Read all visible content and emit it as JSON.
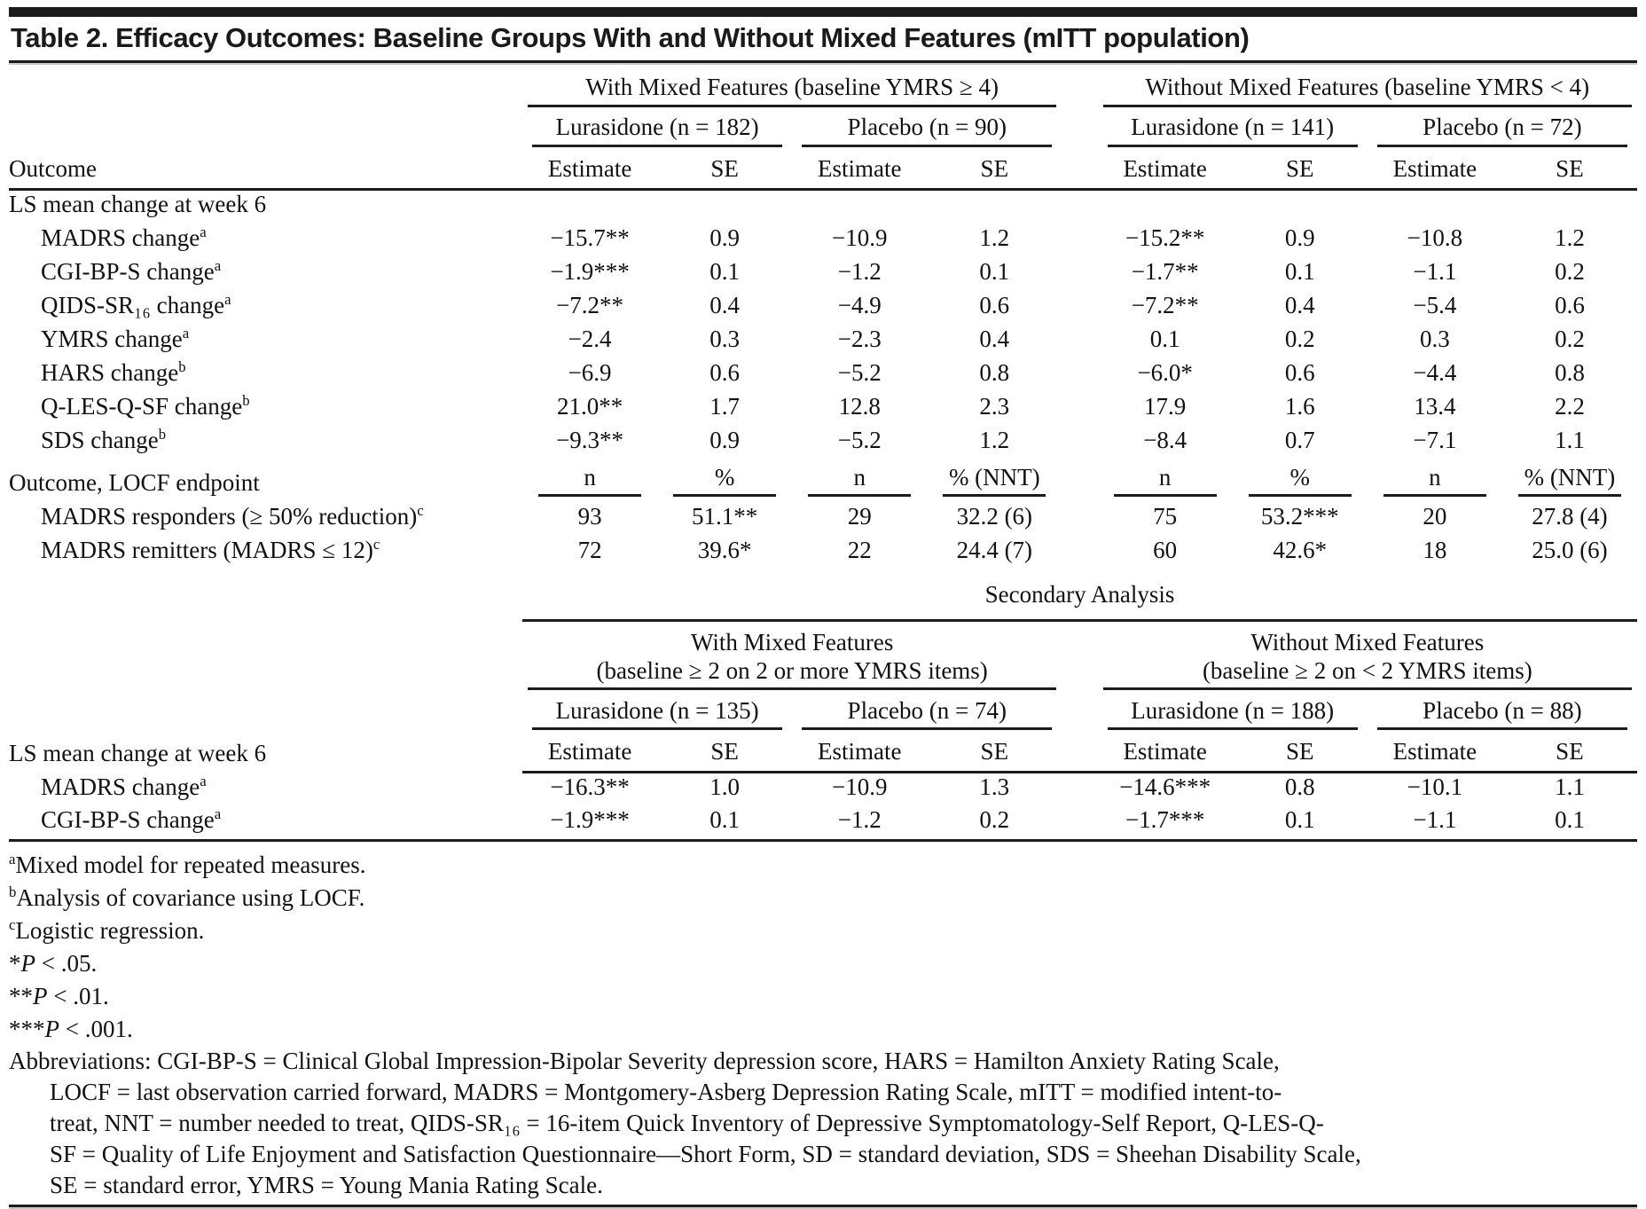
{
  "title": "Table 2. Efficacy Outcomes: Baseline Groups With and Without Mixed Features (mITT population)",
  "labels": {
    "outcome": "Outcome",
    "estimate": "Estimate",
    "se": "SE",
    "ls_mean": "LS mean change at week 6",
    "locf_endpoint": "Outcome, LOCF endpoint",
    "secondary_analysis": "Secondary Analysis"
  },
  "primary": {
    "group_headers": [
      "With Mixed Features (baseline YMRS ≥ 4)",
      "Without Mixed Features (baseline YMRS < 4)"
    ],
    "arm_headers": [
      "Lurasidone (n = 182)",
      "Placebo (n = 90)",
      "Lurasidone (n = 141)",
      "Placebo (n = 72)"
    ],
    "rows": [
      {
        "label": "MADRS change",
        "sup": "a",
        "values": [
          "−15.7**",
          "0.9",
          "−10.9",
          "1.2",
          "−15.2**",
          "0.9",
          "−10.8",
          "1.2"
        ]
      },
      {
        "label": "CGI-BP-S change",
        "sup": "a",
        "values": [
          "−1.9***",
          "0.1",
          "−1.2",
          "0.1",
          "−1.7**",
          "0.1",
          "−1.1",
          "0.2"
        ]
      },
      {
        "label": "QIDS-SR₁₆ change",
        "sup": "a",
        "values": [
          "−7.2**",
          "0.4",
          "−4.9",
          "0.6",
          "−7.2**",
          "0.4",
          "−5.4",
          "0.6"
        ]
      },
      {
        "label": "YMRS change",
        "sup": "a",
        "values": [
          "−2.4",
          "0.3",
          "−2.3",
          "0.4",
          "0.1",
          "0.2",
          "0.3",
          "0.2"
        ]
      },
      {
        "label": "HARS change",
        "sup": "b",
        "values": [
          "−6.9",
          "0.6",
          "−5.2",
          "0.8",
          "−6.0*",
          "0.6",
          "−4.4",
          "0.8"
        ]
      },
      {
        "label": "Q-LES-Q-SF change",
        "sup": "b",
        "values": [
          "21.0**",
          "1.7",
          "12.8",
          "2.3",
          "17.9",
          "1.6",
          "13.4",
          "2.2"
        ]
      },
      {
        "label": "SDS change",
        "sup": "b",
        "values": [
          "−9.3**",
          "0.9",
          "−5.2",
          "1.2",
          "−8.4",
          "0.7",
          "−7.1",
          "1.1"
        ]
      }
    ],
    "locf_headers": [
      "n",
      "%",
      "n",
      "% (NNT)"
    ],
    "locf_rows": [
      {
        "label": "MADRS responders (≥ 50% reduction)",
        "sup": "c",
        "values": [
          "93",
          "51.1**",
          "29",
          "32.2 (6)",
          "75",
          "53.2***",
          "20",
          "27.8 (4)"
        ]
      },
      {
        "label": "MADRS remitters (MADRS ≤ 12)",
        "sup": "c",
        "values": [
          "72",
          "39.6*",
          "22",
          "24.4 (7)",
          "60",
          "42.6*",
          "18",
          "25.0 (6)"
        ]
      }
    ]
  },
  "secondary": {
    "group_headers": [
      {
        "line1": "With Mixed Features",
        "line2": "(baseline ≥ 2 on 2 or more YMRS items)"
      },
      {
        "line1": "Without Mixed Features",
        "line2": "(baseline ≥ 2 on < 2 YMRS items)"
      }
    ],
    "arm_headers": [
      "Lurasidone (n = 135)",
      "Placebo (n = 74)",
      "Lurasidone (n = 188)",
      "Placebo (n = 88)"
    ],
    "rows": [
      {
        "label": "MADRS change",
        "sup": "a",
        "values": [
          "−16.3**",
          "1.0",
          "−10.9",
          "1.3",
          "−14.6***",
          "0.8",
          "−10.1",
          "1.1"
        ]
      },
      {
        "label": "CGI-BP-S change",
        "sup": "a",
        "values": [
          "−1.9***",
          "0.1",
          "−1.2",
          "0.2",
          "−1.7***",
          "0.1",
          "−1.1",
          "0.1"
        ]
      }
    ]
  },
  "footnotes": [
    {
      "sup": "a",
      "text": "Mixed model for repeated measures."
    },
    {
      "sup": "b",
      "text": "Analysis of covariance using LOCF."
    },
    {
      "sup": "c",
      "text": "Logistic regression."
    },
    {
      "pre": "*",
      "italic": "P",
      "text": " < .05."
    },
    {
      "pre": "**",
      "italic": "P",
      "text": " < .01."
    },
    {
      "pre": "***",
      "italic": "P",
      "text": " < .001."
    }
  ],
  "abbreviation_lines": [
    "Abbreviations: CGI-BP-S = Clinical Global Impression-Bipolar Severity depression score, HARS = Hamilton Anxiety Rating Scale,",
    "LOCF = last observation carried forward, MADRS = Montgomery-Asberg Depression Rating Scale, mITT = modified intent-to-",
    "treat, NNT = number needed to treat, QIDS-SR₁₆ = 16-item Quick Inventory of Depressive Symptomatology-Self Report, Q-LES-Q-",
    "SF = Quality of Life Enjoyment and Satisfaction Questionnaire—Short Form, SD = standard deviation, SDS = Sheehan Disability Scale,",
    "SE = standard error, YMRS = Young Mania Rating Scale."
  ]
}
